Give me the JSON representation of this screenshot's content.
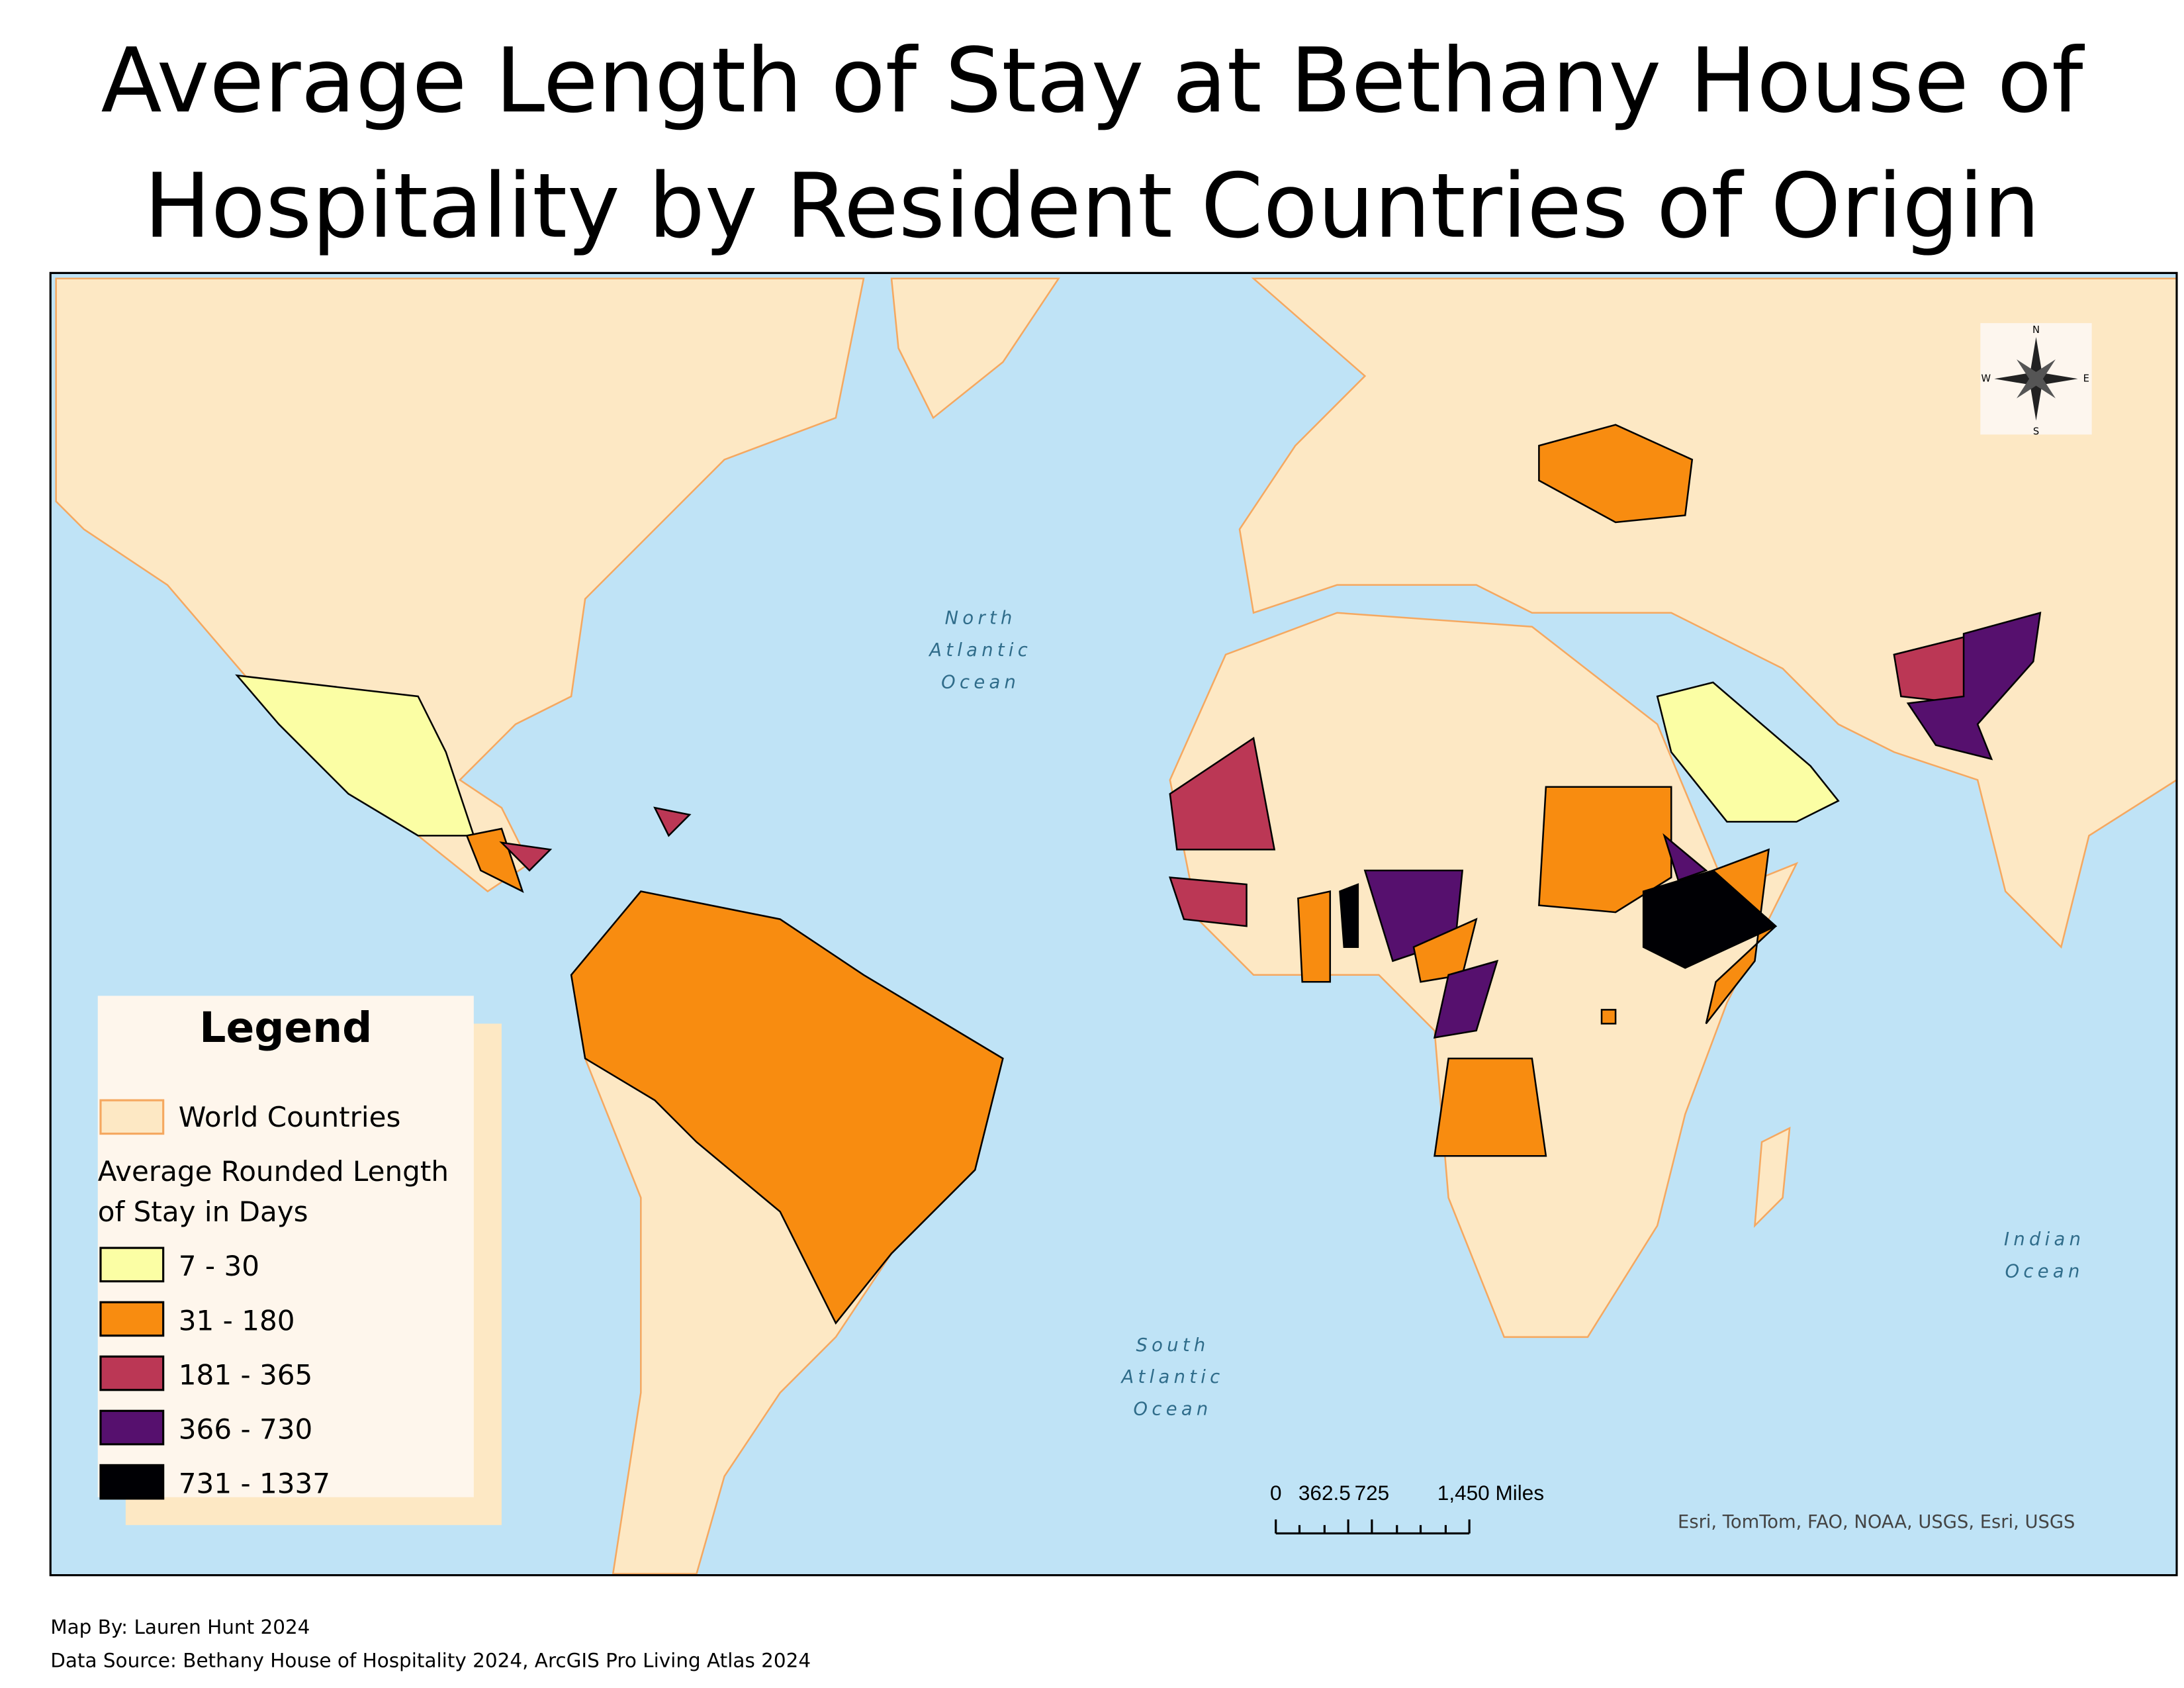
{
  "title": [
    "Average Length of Stay at Bethany House of",
    "Hospitality by Resident Countries of Origin"
  ],
  "map": {
    "ocean_labels": [
      {
        "lines": [
          "North",
          "Atlantic",
          "Ocean"
        ]
      },
      {
        "lines": [
          "South",
          "Atlantic",
          "Ocean"
        ]
      },
      {
        "lines": [
          "Indian",
          "Ocean"
        ]
      }
    ],
    "compass": {
      "n": "N",
      "e": "E",
      "s": "S",
      "w": "W"
    },
    "scale_bar": {
      "labels": [
        "0",
        "362.5",
        "725",
        "1,450 Miles"
      ]
    },
    "attribution": "Esri, TomTom, FAO, NOAA, USGS, Esri, USGS",
    "ocean_color": "#bfe3f6",
    "land_color": "#fde8c4",
    "border_color": "#f5a860"
  },
  "legend": {
    "title": "Legend",
    "base_layer": "World Countries",
    "classes_title": [
      "Average Rounded Length",
      "of Stay in Days"
    ],
    "classes": [
      {
        "label": "7 - 30",
        "color": "#fbfea4"
      },
      {
        "label": "31 - 180",
        "color": "#f88c10"
      },
      {
        "label": "181 - 365",
        "color": "#bb3755"
      },
      {
        "label": "366 - 730",
        "color": "#56106e"
      },
      {
        "label": "731 - 1337",
        "color": "#000004"
      }
    ]
  },
  "footer": [
    "Map By: Lauren Hunt 2024",
    "Data Source: Bethany House of Hospitality 2024, ArcGIS Pro Living Atlas 2024"
  ]
}
